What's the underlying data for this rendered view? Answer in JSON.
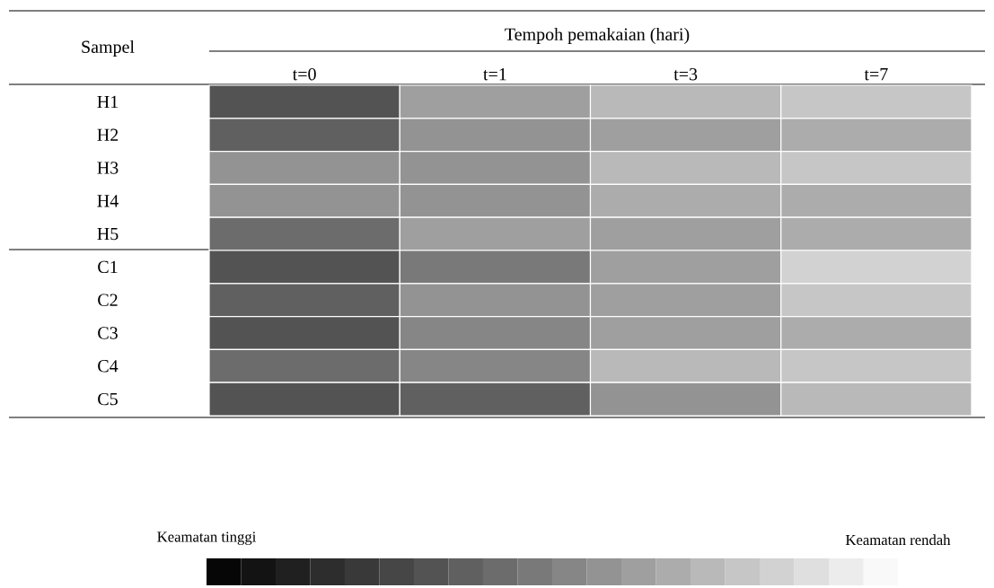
{
  "chart_data": {
    "type": "heatmap",
    "xlabel": "Tempoh pemakaian (hari)",
    "ylabel": "Sampel",
    "categories": [
      "t=0",
      "t=1",
      "t=3",
      "t=7"
    ],
    "y_categories": [
      "H1",
      "H2",
      "H3",
      "H4",
      "H5",
      "C1",
      "C2",
      "C3",
      "C4",
      "C5"
    ],
    "cells": [
      [
        0.675,
        0.375,
        0.275,
        0.225
      ],
      [
        0.625,
        0.425,
        0.375,
        0.325
      ],
      [
        0.425,
        0.425,
        0.275,
        0.225
      ],
      [
        0.425,
        0.425,
        0.325,
        0.325
      ],
      [
        0.575,
        0.375,
        0.375,
        0.325
      ],
      [
        0.675,
        0.525,
        0.375,
        0.175
      ],
      [
        0.625,
        0.425,
        0.375,
        0.225
      ],
      [
        0.675,
        0.475,
        0.375,
        0.325
      ],
      [
        0.575,
        0.475,
        0.275,
        0.225
      ],
      [
        0.675,
        0.625,
        0.425,
        0.275
      ]
    ],
    "clim": [
      0,
      1
    ],
    "cticks": [
      {
        "value": 1,
        "label": "Keamatan tinggi"
      },
      {
        "value": 0,
        "label": "Keamatan rendah"
      }
    ]
  }
}
